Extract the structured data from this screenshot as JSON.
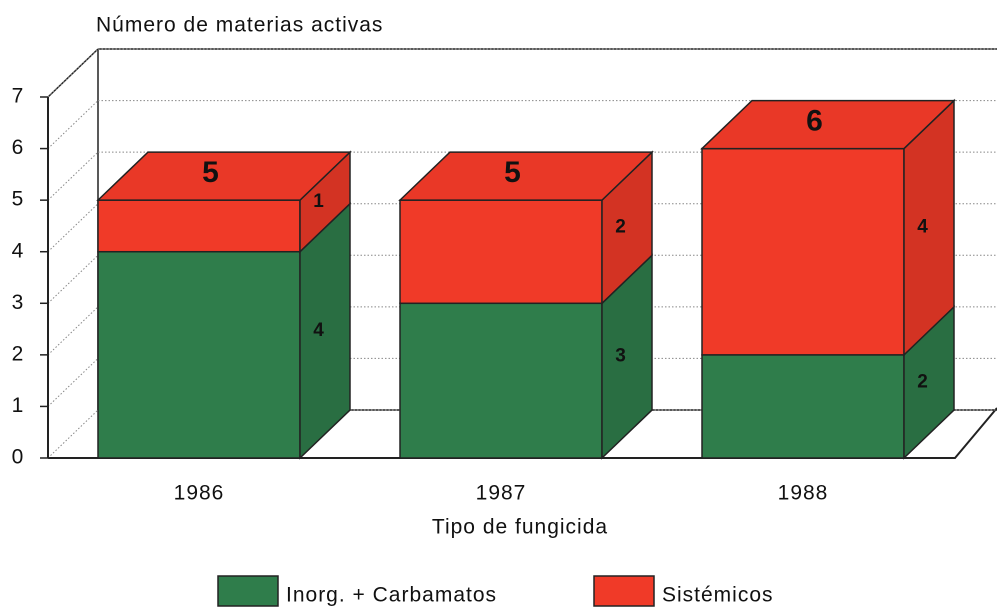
{
  "chart_data": {
    "type": "bar3d_stacked",
    "ylabel": "Número de materias activas",
    "xlabel": "Tipo de fungicida",
    "categories": [
      "1986",
      "1987",
      "1988"
    ],
    "series": [
      {
        "name": "Inorg. + Carbamatos",
        "color": "#2f7d4b",
        "values": [
          4,
          3,
          2
        ]
      },
      {
        "name": "Sistémicos",
        "color": "#f03a28",
        "values": [
          1,
          2,
          4
        ]
      }
    ],
    "totals": [
      5,
      5,
      6
    ],
    "ylim": [
      0,
      7
    ],
    "yticks": [
      0,
      1,
      2,
      3,
      4,
      5,
      6,
      7
    ],
    "grid": true
  }
}
